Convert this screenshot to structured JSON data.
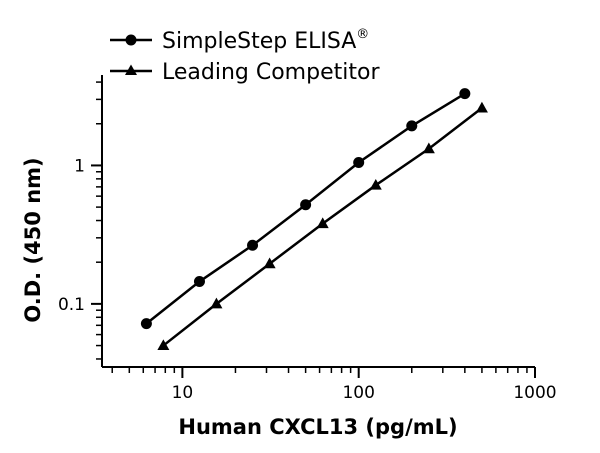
{
  "chart_data": {
    "type": "line",
    "xlabel": "Human CXCL13 (pg/mL)",
    "ylabel": "O.D. (450 nm)",
    "xscale": "log",
    "yscale": "log",
    "xlim": [
      3.5,
      1000
    ],
    "ylim": [
      0.035,
      4.5
    ],
    "x_ticks": [
      {
        "value": 10,
        "label": "10"
      },
      {
        "value": 100,
        "label": "100"
      },
      {
        "value": 1000,
        "label": "1000"
      }
    ],
    "y_ticks": [
      {
        "value": 0.1,
        "label": "0.1"
      },
      {
        "value": 1,
        "label": "1"
      }
    ],
    "legend_position": "top-left",
    "grid": false,
    "series": [
      {
        "name": "SimpleStep ELISA",
        "name_superscript": "®",
        "marker": "circle",
        "color": "#000000",
        "x": [
          6.25,
          12.5,
          25,
          50,
          100,
          200,
          400
        ],
        "y": [
          0.072,
          0.145,
          0.265,
          0.52,
          1.05,
          1.93,
          3.3
        ]
      },
      {
        "name": "Leading Competitor",
        "marker": "triangle",
        "color": "#000000",
        "x": [
          7.8,
          15.6,
          31.25,
          62.5,
          125,
          250,
          500
        ],
        "y": [
          0.05,
          0.1,
          0.195,
          0.38,
          0.72,
          1.32,
          2.6
        ]
      }
    ]
  }
}
